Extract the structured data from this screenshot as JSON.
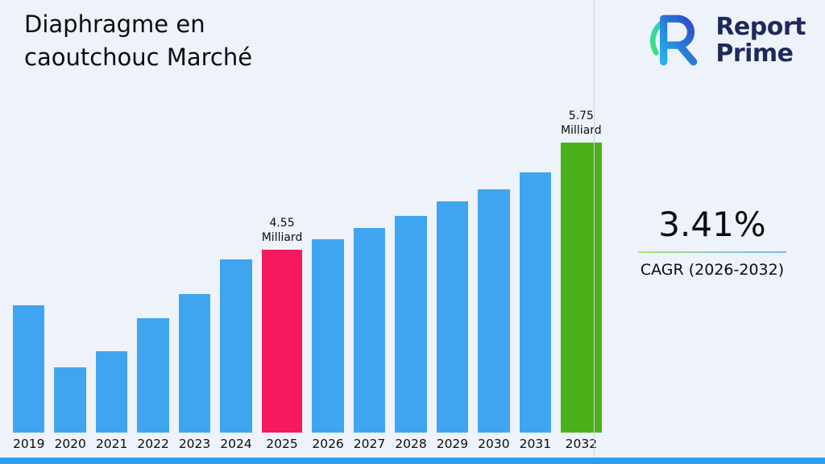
{
  "header": {
    "title": "Diaphragme en caoutchouc Marché"
  },
  "logo": {
    "icon": "reportprime-logo-icon",
    "line1": "Report",
    "line2": "Prime"
  },
  "stats": {
    "cagr_value": "3.41%",
    "cagr_label": "CAGR (2026-2032)"
  },
  "colors": {
    "background": "#eef2fb",
    "bar_default": "#3FA5F0",
    "bar_highlight_pink": "#F5195D",
    "bar_highlight_green": "#4CB118",
    "bottom_accent_bar": "#2E9CF1",
    "logo_navy": "#1e2a5a",
    "divider": "#ccd2e0"
  },
  "chart_data": {
    "type": "bar",
    "title": "Diaphragme en caoutchouc Marché",
    "xlabel": "",
    "ylabel": "",
    "unit": "Milliard",
    "categories": [
      "2019",
      "2020",
      "2021",
      "2022",
      "2023",
      "2024",
      "2025",
      "2026",
      "2027",
      "2028",
      "2029",
      "2030",
      "2031",
      "2032"
    ],
    "values": [
      3.93,
      3.23,
      3.41,
      3.78,
      4.05,
      4.44,
      4.55,
      4.67,
      4.79,
      4.93,
      5.09,
      5.23,
      5.42,
      5.75
    ],
    "labeled_points": [
      {
        "category": "2025",
        "value": "4.55",
        "unit": "Milliard"
      },
      {
        "category": "2032",
        "value": "5.75",
        "unit": "Milliard"
      }
    ],
    "bar_colors": {
      "default": "#3FA5F0",
      "2025": "#F5195D",
      "2032": "#4CB118"
    },
    "value_axis": {
      "baseline": 2.5,
      "max": 5.75,
      "gridlines": false
    },
    "legend": "none"
  }
}
